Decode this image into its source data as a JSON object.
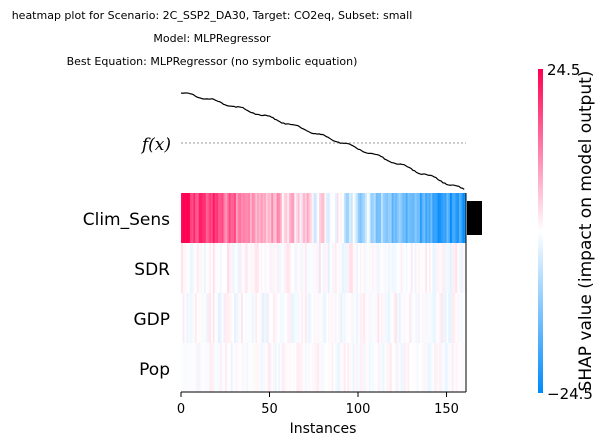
{
  "chart_data": {
    "type": "heatmap",
    "title_lines": [
      "heatmap plot for Scenario: 2C_SSP2_DA30, Target: CO2eq, Subset: small",
      "Model: MLPRegressor",
      "Best Equation: MLPRegressor (no symbolic equation)"
    ],
    "xlabel": "Instances",
    "fx_label": "f(x)",
    "features": [
      "Clim_Sens",
      "SDR",
      "GDP",
      "Pop"
    ],
    "n_instances": 161,
    "xlim": [
      0,
      161
    ],
    "xticks": [
      0,
      50,
      100,
      150
    ],
    "colorbar": {
      "label": "SHAP value (impact on model output)",
      "max_label": "24.5",
      "min_label": "−24.5",
      "range": [
        -24.5,
        24.5
      ],
      "colors": [
        "#008afb",
        "#ffffff",
        "#ff0052"
      ]
    },
    "feature_importance": {
      "Clim_Sens": 1.0,
      "SDR": 0.0,
      "GDP": 0.0,
      "Pop": 0.0
    },
    "shap_profiles": {
      "Clim_Sens": {
        "start": 22,
        "end": -22,
        "noise": 4.5
      },
      "SDR": {
        "start": 0,
        "end": 0,
        "noise": 2.2
      },
      "GDP": {
        "start": 0,
        "end": 0,
        "noise": 2.0
      },
      "Pop": {
        "start": 0,
        "end": 0,
        "noise": 1.5
      }
    },
    "fx_curve": {
      "start": 1.0,
      "end": 0.0,
      "baseline": 0.55
    }
  }
}
